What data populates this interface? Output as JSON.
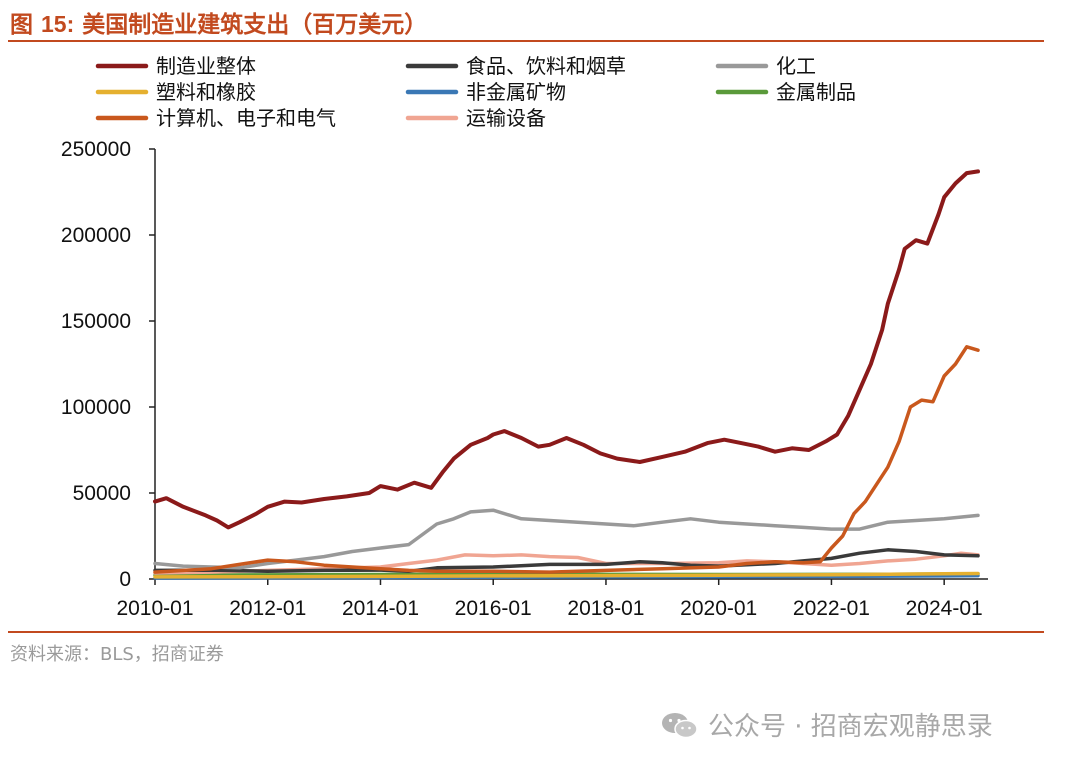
{
  "title": {
    "prefix": "图 ",
    "number": "15:",
    "text": "美国制造业建筑支出（百万美元）"
  },
  "source": "资料来源：BLS，招商证券",
  "watermark": "公众号 · 招商宏观静思录",
  "watermark_icon": "wechat-icon",
  "chart_data": {
    "type": "line",
    "title": "美国制造业建筑支出（百万美元）",
    "xlabel": "",
    "ylabel": "",
    "xlim": [
      2010.0,
      2024.6
    ],
    "ylim": [
      0,
      250000
    ],
    "yticks": [
      0,
      50000,
      100000,
      150000,
      200000,
      250000
    ],
    "ytick_labels": [
      "0",
      "50000",
      "100000",
      "150000",
      "200000",
      "250000"
    ],
    "xticks": [
      2010.0,
      2012.0,
      2014.0,
      2016.0,
      2018.0,
      2020.0,
      2022.0,
      2024.0
    ],
    "xtick_labels": [
      "2010-01",
      "2012-01",
      "2014-01",
      "2016-01",
      "2018-01",
      "2020-01",
      "2022-01",
      "2024-01"
    ],
    "legend_placement": "top",
    "series": [
      {
        "name": "制造业整体",
        "color": "#8b1a1a",
        "points": [
          [
            2010.0,
            45000
          ],
          [
            2010.2,
            47000
          ],
          [
            2010.5,
            42000
          ],
          [
            2010.9,
            37000
          ],
          [
            2011.1,
            34000
          ],
          [
            2011.3,
            30000
          ],
          [
            2011.5,
            33000
          ],
          [
            2011.8,
            38000
          ],
          [
            2012.0,
            42000
          ],
          [
            2012.3,
            45000
          ],
          [
            2012.6,
            44500
          ],
          [
            2013.0,
            46500
          ],
          [
            2013.4,
            48000
          ],
          [
            2013.8,
            50000
          ],
          [
            2014.0,
            54000
          ],
          [
            2014.3,
            52000
          ],
          [
            2014.6,
            56000
          ],
          [
            2014.9,
            53000
          ],
          [
            2015.1,
            62000
          ],
          [
            2015.3,
            70000
          ],
          [
            2015.6,
            78000
          ],
          [
            2015.9,
            82000
          ],
          [
            2016.0,
            84000
          ],
          [
            2016.2,
            86000
          ],
          [
            2016.5,
            82000
          ],
          [
            2016.8,
            77000
          ],
          [
            2017.0,
            78000
          ],
          [
            2017.3,
            82000
          ],
          [
            2017.6,
            78000
          ],
          [
            2017.9,
            73000
          ],
          [
            2018.2,
            70000
          ],
          [
            2018.6,
            68000
          ],
          [
            2019.0,
            71000
          ],
          [
            2019.4,
            74000
          ],
          [
            2019.8,
            79000
          ],
          [
            2020.1,
            81000
          ],
          [
            2020.4,
            79000
          ],
          [
            2020.7,
            77000
          ],
          [
            2021.0,
            74000
          ],
          [
            2021.3,
            76000
          ],
          [
            2021.6,
            75000
          ],
          [
            2021.9,
            80000
          ],
          [
            2022.1,
            84000
          ],
          [
            2022.3,
            95000
          ],
          [
            2022.5,
            110000
          ],
          [
            2022.7,
            125000
          ],
          [
            2022.9,
            145000
          ],
          [
            2023.0,
            160000
          ],
          [
            2023.2,
            180000
          ],
          [
            2023.3,
            192000
          ],
          [
            2023.5,
            197000
          ],
          [
            2023.7,
            195000
          ],
          [
            2023.9,
            212000
          ],
          [
            2024.0,
            222000
          ],
          [
            2024.2,
            230000
          ],
          [
            2024.4,
            236000
          ],
          [
            2024.6,
            237000
          ]
        ]
      },
      {
        "name": "食品、饮料和烟草",
        "color": "#3a3a3a",
        "points": [
          [
            2010.0,
            5000
          ],
          [
            2011.0,
            5200
          ],
          [
            2012.0,
            4500
          ],
          [
            2013.0,
            5000
          ],
          [
            2014.0,
            5200
          ],
          [
            2014.5,
            4500
          ],
          [
            2015.0,
            6500
          ],
          [
            2016.0,
            7000
          ],
          [
            2017.0,
            8500
          ],
          [
            2018.0,
            8500
          ],
          [
            2018.6,
            10000
          ],
          [
            2019.0,
            9500
          ],
          [
            2019.5,
            8000
          ],
          [
            2020.0,
            7500
          ],
          [
            2021.0,
            9000
          ],
          [
            2021.5,
            10500
          ],
          [
            2022.0,
            12000
          ],
          [
            2022.5,
            15000
          ],
          [
            2023.0,
            17000
          ],
          [
            2023.5,
            16000
          ],
          [
            2024.0,
            14000
          ],
          [
            2024.6,
            13500
          ]
        ]
      },
      {
        "name": "化工",
        "color": "#999999",
        "points": [
          [
            2010.0,
            9000
          ],
          [
            2010.5,
            7500
          ],
          [
            2011.0,
            7000
          ],
          [
            2011.5,
            6500
          ],
          [
            2012.0,
            9000
          ],
          [
            2012.5,
            11000
          ],
          [
            2013.0,
            13000
          ],
          [
            2013.5,
            16000
          ],
          [
            2014.0,
            18000
          ],
          [
            2014.5,
            20000
          ],
          [
            2015.0,
            32000
          ],
          [
            2015.3,
            35000
          ],
          [
            2015.6,
            39000
          ],
          [
            2016.0,
            40000
          ],
          [
            2016.5,
            35000
          ],
          [
            2017.0,
            34000
          ],
          [
            2017.5,
            33000
          ],
          [
            2018.0,
            32000
          ],
          [
            2018.5,
            31000
          ],
          [
            2019.0,
            33000
          ],
          [
            2019.5,
            35000
          ],
          [
            2020.0,
            33000
          ],
          [
            2020.5,
            32000
          ],
          [
            2021.0,
            31000
          ],
          [
            2021.5,
            30000
          ],
          [
            2022.0,
            29000
          ],
          [
            2022.5,
            29000
          ],
          [
            2023.0,
            33000
          ],
          [
            2023.5,
            34000
          ],
          [
            2024.0,
            35000
          ],
          [
            2024.6,
            37000
          ]
        ]
      },
      {
        "name": "塑料和橡胶",
        "color": "#e5b02f",
        "points": [
          [
            2010.0,
            1200
          ],
          [
            2012.0,
            1300
          ],
          [
            2014.0,
            1500
          ],
          [
            2016.0,
            1800
          ],
          [
            2018.0,
            2000
          ],
          [
            2020.0,
            2200
          ],
          [
            2022.0,
            2500
          ],
          [
            2024.0,
            3000
          ],
          [
            2024.6,
            3200
          ]
        ]
      },
      {
        "name": "非金属矿物",
        "color": "#3a78b5",
        "points": [
          [
            2010.0,
            600
          ],
          [
            2012.0,
            700
          ],
          [
            2014.0,
            800
          ],
          [
            2016.0,
            1000
          ],
          [
            2018.0,
            1200
          ],
          [
            2020.0,
            1300
          ],
          [
            2022.0,
            1500
          ],
          [
            2024.0,
            1800
          ],
          [
            2024.6,
            2000
          ]
        ]
      },
      {
        "name": "金属制品",
        "color": "#5a9a3a",
        "points": [
          [
            2010.0,
            2200
          ],
          [
            2012.0,
            2400
          ],
          [
            2014.0,
            2600
          ],
          [
            2016.0,
            2800
          ],
          [
            2018.0,
            2700
          ],
          [
            2020.0,
            2600
          ],
          [
            2022.0,
            2700
          ],
          [
            2024.0,
            2900
          ],
          [
            2024.6,
            3000
          ]
        ]
      },
      {
        "name": "计算机、电子和电气",
        "color": "#c9581d",
        "points": [
          [
            2010.0,
            4000
          ],
          [
            2011.0,
            6000
          ],
          [
            2011.6,
            9000
          ],
          [
            2012.0,
            11000
          ],
          [
            2012.5,
            10000
          ],
          [
            2013.0,
            8000
          ],
          [
            2014.0,
            6000
          ],
          [
            2014.5,
            5000
          ],
          [
            2015.0,
            4500
          ],
          [
            2016.0,
            4500
          ],
          [
            2017.0,
            4000
          ],
          [
            2018.0,
            5000
          ],
          [
            2019.0,
            6000
          ],
          [
            2020.0,
            7000
          ],
          [
            2020.5,
            9000
          ],
          [
            2021.0,
            10000
          ],
          [
            2021.5,
            9500
          ],
          [
            2021.8,
            10000
          ],
          [
            2022.0,
            18000
          ],
          [
            2022.2,
            25000
          ],
          [
            2022.4,
            38000
          ],
          [
            2022.6,
            45000
          ],
          [
            2022.8,
            55000
          ],
          [
            2023.0,
            65000
          ],
          [
            2023.2,
            80000
          ],
          [
            2023.4,
            100000
          ],
          [
            2023.6,
            104000
          ],
          [
            2023.8,
            103000
          ],
          [
            2024.0,
            118000
          ],
          [
            2024.2,
            125000
          ],
          [
            2024.4,
            135000
          ],
          [
            2024.6,
            133000
          ]
        ]
      },
      {
        "name": "运输设备",
        "color": "#f0a592",
        "points": [
          [
            2010.0,
            3500
          ],
          [
            2011.0,
            4000
          ],
          [
            2012.0,
            5000
          ],
          [
            2013.0,
            6000
          ],
          [
            2014.0,
            7000
          ],
          [
            2014.5,
            9000
          ],
          [
            2015.0,
            11000
          ],
          [
            2015.5,
            14000
          ],
          [
            2016.0,
            13500
          ],
          [
            2016.5,
            14000
          ],
          [
            2017.0,
            13000
          ],
          [
            2017.5,
            12500
          ],
          [
            2018.0,
            9000
          ],
          [
            2019.0,
            9000
          ],
          [
            2020.0,
            9500
          ],
          [
            2020.5,
            10500
          ],
          [
            2021.0,
            10000
          ],
          [
            2021.5,
            9000
          ],
          [
            2022.0,
            8000
          ],
          [
            2022.5,
            9000
          ],
          [
            2023.0,
            10500
          ],
          [
            2023.5,
            11500
          ],
          [
            2024.0,
            13500
          ],
          [
            2024.3,
            15000
          ],
          [
            2024.6,
            14000
          ]
        ]
      }
    ]
  }
}
